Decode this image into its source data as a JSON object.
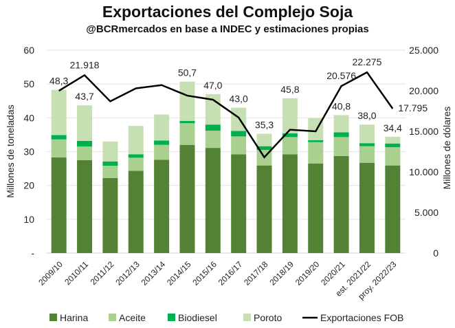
{
  "chart_data": {
    "type": "bar",
    "title": "Exportaciones del Complejo Soja",
    "subtitle": "@BCRmercados en base a INDEC y estimaciones propias",
    "ylabel": "Millones de toneladas",
    "y2label": "Millones de dólares",
    "ylim": [
      0,
      60
    ],
    "y2lim": [
      0,
      25000
    ],
    "yticks": [
      "-",
      "10",
      "20",
      "30",
      "40",
      "50",
      "60"
    ],
    "y2ticks": [
      "0",
      "5.000",
      "10.000",
      "15.000",
      "20.000",
      "25.000"
    ],
    "categories": [
      "2009/10",
      "2010/11",
      "2011/12",
      "2012/13",
      "2013/14",
      "2014/15",
      "2015/16",
      "2016/17",
      "2017/18",
      "2018/19",
      "2019/20",
      "2020/21",
      "est. 2021/22",
      "proy. 2022/23"
    ],
    "series": [
      {
        "name": "Harina",
        "color": "#548235",
        "values": [
          28.3,
          27.5,
          22.2,
          24.3,
          27.6,
          32.0,
          31.1,
          29.2,
          25.9,
          29.2,
          26.5,
          28.7,
          26.7,
          25.9
        ]
      },
      {
        "name": "Aceite",
        "color": "#a9d08e",
        "values": [
          5.3,
          4.0,
          3.6,
          3.9,
          4.4,
          6.4,
          5.1,
          5.3,
          4.6,
          5.1,
          6.3,
          5.6,
          4.9,
          5.4
        ]
      },
      {
        "name": "Biodiesel",
        "color": "#00b050",
        "values": [
          1.3,
          1.7,
          1.3,
          1.0,
          1.3,
          0.7,
          1.8,
          1.6,
          1.1,
          1.1,
          0.6,
          1.4,
          0.9,
          1.1
        ]
      },
      {
        "name": "Poroto",
        "color": "#c6e0b4",
        "values": [
          13.4,
          10.5,
          5.9,
          8.4,
          7.7,
          11.6,
          9.0,
          6.9,
          3.7,
          10.4,
          6.5,
          5.1,
          5.5,
          2.0
        ]
      }
    ],
    "line": {
      "name": "Exportaciones FOB",
      "color": "#000000",
      "values": [
        20000,
        21918,
        18700,
        20300,
        20700,
        19400,
        18900,
        16700,
        11800,
        15200,
        15000,
        20576,
        22275,
        17795
      ]
    },
    "total_labels": [
      "48,3",
      "43,7",
      "",
      "",
      "",
      "50,7",
      "47,0",
      "43,0",
      "35,3",
      "45,8",
      "",
      "40,8",
      "38,0",
      "34,4"
    ],
    "line_labels": [
      "",
      "21.918",
      "",
      "",
      "",
      "",
      "",
      "",
      "",
      "",
      "",
      "20.576",
      "22.275",
      "17.795"
    ],
    "legend": "bottom",
    "grid": true
  }
}
